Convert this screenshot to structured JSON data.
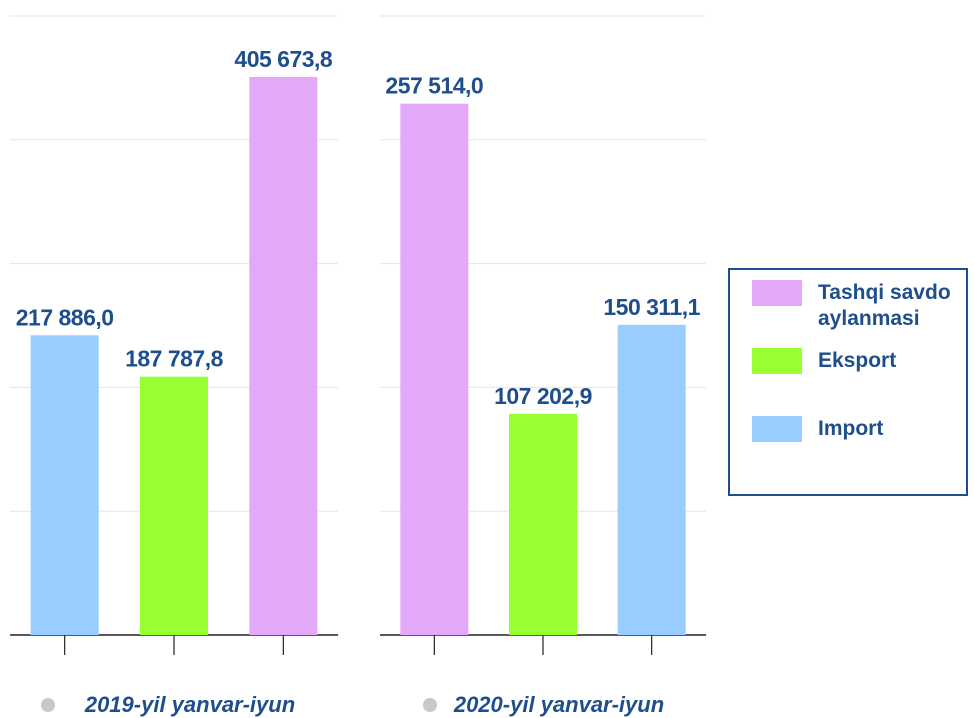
{
  "chart_data": [
    {
      "type": "bar",
      "xlabel": "2019-yil yanvar-iyun",
      "values": [
        217886.0,
        187787.8,
        405673.8
      ],
      "value_labels": [
        "217 886,0",
        "187 787,8",
        "405 673,8"
      ],
      "colors": [
        "#99ccff",
        "#99ff33",
        "#e4a8f8"
      ],
      "ylim": [
        0,
        450000
      ],
      "yticks": [
        0,
        90000,
        180000,
        270000,
        360000,
        450000
      ],
      "grid": true
    },
    {
      "type": "bar",
      "xlabel": "2020-yil yanvar-iyun",
      "values": [
        257514.0,
        107202.9,
        150311.1
      ],
      "value_labels": [
        "257 514,0",
        "107 202,9",
        "150 311,1"
      ],
      "colors": [
        "#e4a8f8",
        "#99ff33",
        "#99ccff"
      ],
      "ylim": [
        0,
        300000
      ],
      "yticks": [
        0,
        60000,
        120000,
        180000,
        240000,
        300000
      ],
      "grid": true
    }
  ],
  "legend": {
    "corner": "right",
    "entries": [
      "Tashqi savdo aylanmasi",
      "Eksport",
      "Import"
    ],
    "colors": [
      "#e4a8f8",
      "#99ff33",
      "#99ccff"
    ]
  }
}
